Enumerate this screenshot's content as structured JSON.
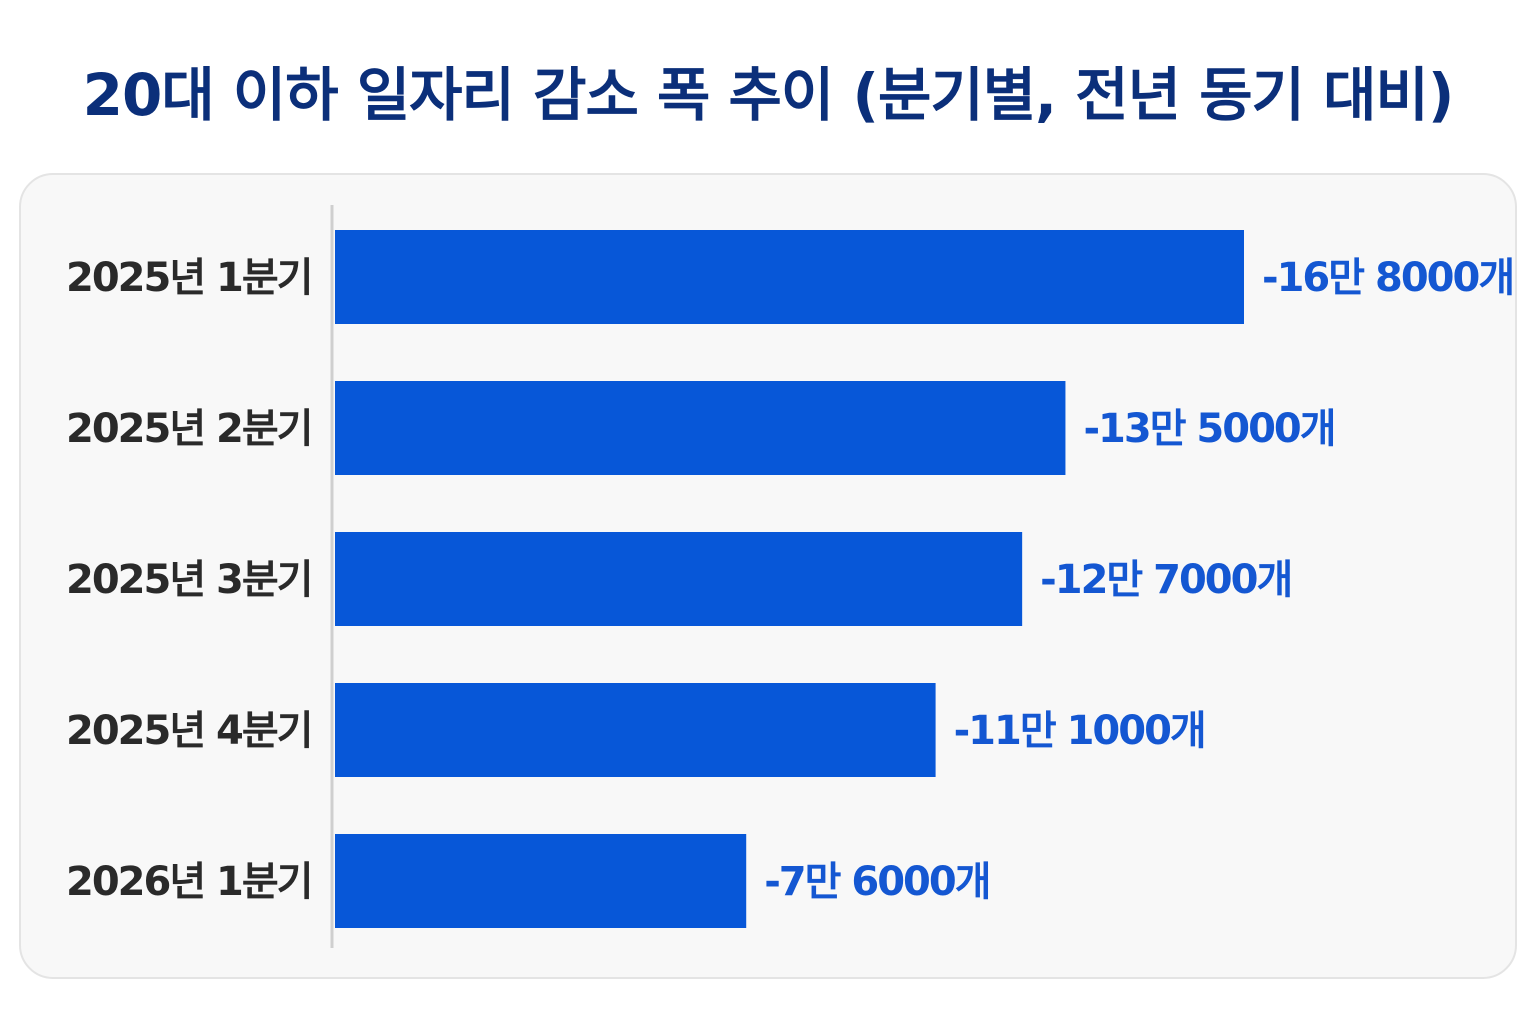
{
  "title": "20대 이하 일자리 감소 폭 추이 (분기별, 전년 동기 대비)",
  "chart_data": {
    "type": "bar",
    "orientation": "horizontal",
    "categories": [
      "2025년 1분기",
      "2025년 2분기",
      "2025년 3분기",
      "2025년 4분기",
      "2026년 1분기"
    ],
    "values": [
      -168000,
      -135000,
      -127000,
      -111000,
      -76000
    ],
    "data_labels": [
      "-16만 8000개",
      "-13만 5000개",
      "-12만 7000개",
      "-11만 1000개",
      "-7만 6000개"
    ],
    "bar_color": "#0757d8",
    "label_color": "#1457d2",
    "grid": false,
    "legend": "none"
  }
}
